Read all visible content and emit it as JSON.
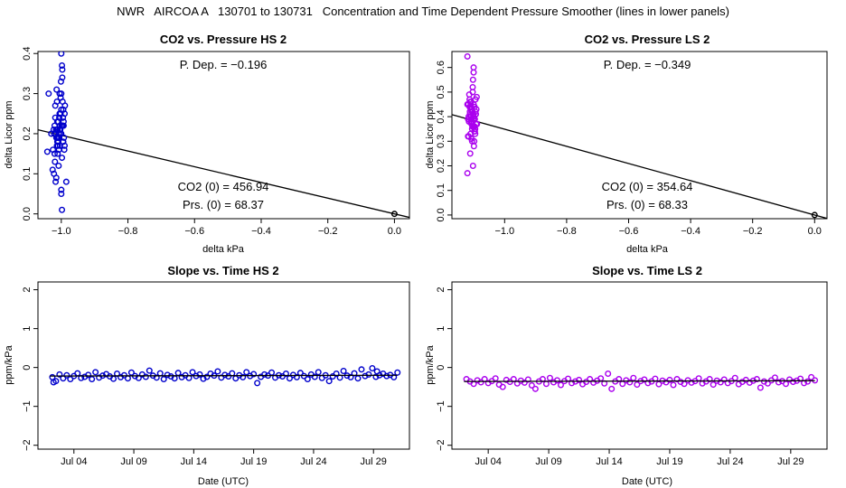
{
  "title": "NWR   AIRCOA A   130701 to 130731   Concentration and Time Dependent Pressure Smoother (lines in lower panels)",
  "colors": {
    "hs": "#0000cc",
    "ls": "#aa00ee",
    "line": "#000000"
  },
  "chart_data": [
    {
      "id": "p1",
      "type": "scatter",
      "title": "CO2 vs. Pressure HS 2",
      "xlabel": "delta kPa",
      "ylabel": "delta Licor ppm",
      "xlim": [
        -1.07,
        0.045
      ],
      "ylim": [
        -0.012,
        0.405
      ],
      "xticks": [
        -1.0,
        -0.8,
        -0.6,
        -0.4,
        -0.2,
        0.0
      ],
      "xtick_labels": [
        "−1.0",
        "−0.8",
        "−0.6",
        "−0.4",
        "−0.2",
        "0.0"
      ],
      "yticks": [
        0.0,
        0.1,
        0.2,
        0.3,
        0.4
      ],
      "ytick_labels": [
        "0.0",
        "0.1",
        "0.2",
        "0.3",
        "0.4"
      ],
      "annotations": {
        "pdep": "P. Dep. =  −0.196",
        "co2": "CO2 (0) =  456.94",
        "prs": "Prs. (0) =  68.37"
      },
      "fit_line": {
        "slope": -0.196,
        "intercept": 0.0
      },
      "points": {
        "x": [
          -1.0,
          -1.015,
          -1.005,
          -0.995,
          -1.02,
          -1.01,
          -0.99,
          -1.025,
          -1.0,
          -1.012,
          -0.998,
          -1.008,
          -1.018,
          -0.992,
          -1.003,
          -1.022,
          -1.006,
          -0.996,
          -1.011,
          -1.001,
          -1.016,
          -0.994,
          -1.009,
          -1.004,
          -1.019,
          -0.997,
          -1.013,
          -1.002,
          -1.007,
          -0.993,
          -1.014,
          -1.0,
          -1.021,
          -0.991,
          -1.005,
          -1.017,
          -0.999,
          -1.01,
          -1.026,
          -0.989,
          -1.003,
          -1.012,
          -0.995,
          -1.008,
          -1.015,
          -1.0,
          -1.004,
          -0.997,
          -1.011,
          -1.02,
          -0.993,
          -1.006,
          -1.013,
          -1.0,
          -0.998,
          -1.009,
          -1.016,
          -1.002,
          -0.994,
          -1.023,
          -1.0,
          -1.007,
          -0.996,
          -1.012,
          -1.005,
          -1.018,
          -1.001,
          -0.99,
          -1.014,
          -1.003,
          -1.042,
          -1.038,
          -0.998,
          -1.03,
          -0.985
        ],
        "y": [
          0.2,
          0.19,
          0.21,
          0.18,
          0.22,
          0.17,
          0.25,
          0.16,
          0.3,
          0.23,
          0.14,
          0.12,
          0.27,
          0.19,
          0.2,
          0.1,
          0.24,
          0.28,
          0.15,
          0.33,
          0.21,
          0.26,
          0.18,
          0.22,
          0.13,
          0.36,
          0.17,
          0.29,
          0.19,
          0.23,
          0.31,
          0.4,
          0.2,
          0.16,
          0.25,
          0.08,
          0.22,
          0.19,
          0.11,
          0.27,
          0.21,
          0.18,
          0.24,
          0.2,
          0.09,
          0.26,
          0.17,
          0.34,
          0.21,
          0.15,
          0.22,
          0.19,
          0.28,
          0.06,
          0.01,
          0.23,
          0.2,
          0.25,
          0.18,
          0.21,
          0.05,
          0.16,
          0.22,
          0.19,
          0.3,
          0.24,
          0.2,
          0.17,
          0.21,
          0.2,
          0.155,
          0.3,
          0.37,
          0.2,
          0.08
        ]
      },
      "origin_point": {
        "x": 0.0,
        "y": 0.0
      }
    },
    {
      "id": "p2",
      "type": "scatter",
      "title": "CO2 vs. Pressure LS 2",
      "xlabel": "delta kPa",
      "ylabel": "delta Licor ppm",
      "xlim": [
        -1.17,
        0.04
      ],
      "ylim": [
        -0.015,
        0.665
      ],
      "xticks": [
        -1.0,
        -0.8,
        -0.6,
        -0.4,
        -0.2,
        0.0
      ],
      "xtick_labels": [
        "−1.0",
        "−0.8",
        "−0.6",
        "−0.4",
        "−0.2",
        "0.0"
      ],
      "yticks": [
        0.0,
        0.1,
        0.2,
        0.3,
        0.4,
        0.5,
        0.6
      ],
      "ytick_labels": [
        "0.0",
        "0.1",
        "0.2",
        "0.3",
        "0.4",
        "0.5",
        "0.6"
      ],
      "annotations": {
        "pdep": "P. Dep. =  −0.349",
        "co2": "CO2 (0) =  354.64",
        "prs": "Prs. (0) =  68.33"
      },
      "fit_line": {
        "slope": -0.349,
        "intercept": 0.0
      },
      "points": {
        "x": [
          -1.1,
          -1.115,
          -1.105,
          -1.095,
          -1.12,
          -1.11,
          -1.09,
          -1.1,
          -1.112,
          -1.098,
          -1.108,
          -1.118,
          -1.092,
          -1.103,
          -1.106,
          -1.096,
          -1.111,
          -1.101,
          -1.116,
          -1.094,
          -1.109,
          -1.104,
          -1.097,
          -1.113,
          -1.102,
          -1.107,
          -1.093,
          -1.114,
          -1.1,
          -1.091,
          -1.105,
          -1.117,
          -1.099,
          -1.11,
          -1.089,
          -1.103,
          -1.112,
          -1.095,
          -1.108,
          -1.115,
          -1.1,
          -1.104,
          -1.097,
          -1.111,
          -1.093,
          -1.106,
          -1.113,
          -1.1,
          -1.098,
          -1.109,
          -1.116,
          -1.102,
          -1.094,
          -1.107,
          -1.1,
          -1.118,
          -1.096,
          -1.105,
          -1.112,
          -1.101,
          -1.12,
          -1.108
        ],
        "y": [
          0.4,
          0.38,
          0.42,
          0.35,
          0.45,
          0.33,
          0.48,
          0.36,
          0.41,
          0.3,
          0.44,
          0.39,
          0.37,
          0.5,
          0.43,
          0.34,
          0.46,
          0.4,
          0.32,
          0.47,
          0.38,
          0.42,
          0.36,
          0.44,
          0.55,
          0.31,
          0.41,
          0.49,
          0.39,
          0.43,
          0.35,
          0.45,
          0.28,
          0.4,
          0.37,
          0.52,
          0.42,
          0.33,
          0.46,
          0.38,
          0.6,
          0.36,
          0.44,
          0.25,
          0.41,
          0.39,
          0.47,
          0.58,
          0.34,
          0.43,
          0.4,
          0.2,
          0.42,
          0.37,
          0.45,
          0.32,
          0.39,
          0.3,
          0.44,
          0.41,
          0.17,
          0.4
        ],
        "extra": [
          {
            "x": -1.12,
            "y": 0.645
          }
        ]
      },
      "origin_point": {
        "x": 0.0,
        "y": 0.0
      }
    },
    {
      "id": "p3",
      "type": "scatter",
      "title": "Slope vs. Time HS 2",
      "xlabel": "Date (UTC)",
      "ylabel": "ppm/kPa",
      "xlim": [
        0.0,
        31.0
      ],
      "ylim": [
        -2.1,
        2.2
      ],
      "xticks": [
        3.0,
        8.0,
        13.0,
        18.0,
        23.0,
        28.0
      ],
      "xtick_labels": [
        "Jul 04",
        "Jul 09",
        "Jul 14",
        "Jul 19",
        "Jul 24",
        "Jul 29"
      ],
      "yticks": [
        -2,
        -1,
        0,
        1,
        2
      ],
      "ytick_labels": [
        "−2",
        "−1",
        "0",
        "1",
        "2"
      ],
      "points": {
        "x": [
          1.2,
          1.5,
          1.8,
          2.1,
          2.4,
          2.7,
          3.0,
          3.3,
          3.6,
          3.9,
          4.2,
          4.5,
          4.8,
          5.1,
          5.4,
          5.7,
          6.0,
          6.3,
          6.6,
          6.9,
          7.2,
          7.5,
          7.8,
          8.1,
          8.4,
          8.7,
          9.0,
          9.3,
          9.6,
          9.9,
          10.2,
          10.5,
          10.8,
          11.1,
          11.4,
          11.7,
          12.0,
          12.3,
          12.6,
          12.9,
          13.2,
          13.5,
          13.8,
          14.1,
          14.4,
          14.7,
          15.0,
          15.3,
          15.6,
          15.9,
          16.2,
          16.5,
          16.8,
          17.1,
          17.4,
          17.7,
          18.0,
          18.3,
          18.6,
          18.9,
          19.2,
          19.5,
          19.8,
          20.1,
          20.4,
          20.7,
          21.0,
          21.3,
          21.6,
          21.9,
          22.2,
          22.5,
          22.8,
          23.1,
          23.4,
          23.7,
          24.0,
          24.3,
          24.6,
          24.9,
          25.2,
          25.5,
          25.8,
          26.1,
          26.4,
          26.7,
          27.0,
          27.3,
          27.6,
          27.9,
          28.2,
          28.5,
          28.8,
          29.1,
          29.4,
          29.7,
          30.0
        ],
        "y": [
          -0.25,
          -0.35,
          -0.18,
          -0.28,
          -0.2,
          -0.3,
          -0.22,
          -0.15,
          -0.27,
          -0.24,
          -0.19,
          -0.3,
          -0.12,
          -0.26,
          -0.21,
          -0.17,
          -0.23,
          -0.29,
          -0.16,
          -0.25,
          -0.2,
          -0.28,
          -0.13,
          -0.22,
          -0.27,
          -0.18,
          -0.24,
          -0.08,
          -0.21,
          -0.26,
          -0.15,
          -0.3,
          -0.19,
          -0.23,
          -0.28,
          -0.14,
          -0.25,
          -0.2,
          -0.27,
          -0.12,
          -0.22,
          -0.18,
          -0.29,
          -0.24,
          -0.16,
          -0.21,
          -0.1,
          -0.26,
          -0.19,
          -0.23,
          -0.15,
          -0.28,
          -0.2,
          -0.25,
          -0.12,
          -0.22,
          -0.17,
          -0.4,
          -0.24,
          -0.18,
          -0.21,
          -0.13,
          -0.26,
          -0.2,
          -0.23,
          -0.16,
          -0.28,
          -0.19,
          -0.25,
          -0.14,
          -0.22,
          -0.3,
          -0.18,
          -0.24,
          -0.12,
          -0.27,
          -0.2,
          -0.35,
          -0.23,
          -0.16,
          -0.26,
          -0.09,
          -0.21,
          -0.25,
          -0.15,
          -0.28,
          -0.05,
          -0.22,
          -0.18,
          -0.02,
          -0.24,
          -0.2,
          -0.16,
          -0.22,
          -0.19,
          -0.25,
          -0.13
        ],
        "extra": [
          {
            "x": 1.3,
            "y": -0.38
          },
          {
            "x": 28.3,
            "y": -0.1
          }
        ]
      },
      "smoother": {
        "x": [
          1.0,
          30.0
        ],
        "y": [
          -0.22,
          -0.2
        ]
      }
    },
    {
      "id": "p4",
      "type": "scatter",
      "title": "Slope vs. Time LS 2",
      "xlabel": "Date (UTC)",
      "ylabel": "ppm/kPa",
      "xlim": [
        0.0,
        31.0
      ],
      "ylim": [
        -2.1,
        2.2
      ],
      "xticks": [
        3.0,
        8.0,
        13.0,
        18.0,
        23.0,
        28.0
      ],
      "xtick_labels": [
        "Jul 04",
        "Jul 09",
        "Jul 14",
        "Jul 19",
        "Jul 24",
        "Jul 29"
      ],
      "yticks": [
        -2,
        -1,
        0,
        1,
        2
      ],
      "ytick_labels": [
        "−2",
        "−1",
        "0",
        "1",
        "2"
      ],
      "points": {
        "x": [
          1.2,
          1.5,
          1.8,
          2.1,
          2.4,
          2.7,
          3.0,
          3.3,
          3.6,
          3.9,
          4.2,
          4.5,
          4.8,
          5.1,
          5.4,
          5.7,
          6.0,
          6.3,
          6.6,
          6.9,
          7.2,
          7.5,
          7.8,
          8.1,
          8.4,
          8.7,
          9.0,
          9.3,
          9.6,
          9.9,
          10.2,
          10.5,
          10.8,
          11.1,
          11.4,
          11.7,
          12.0,
          12.3,
          12.6,
          12.9,
          13.2,
          13.5,
          13.8,
          14.1,
          14.4,
          14.7,
          15.0,
          15.3,
          15.6,
          15.9,
          16.2,
          16.5,
          16.8,
          17.1,
          17.4,
          17.7,
          18.0,
          18.3,
          18.6,
          18.9,
          19.2,
          19.5,
          19.8,
          20.1,
          20.4,
          20.7,
          21.0,
          21.3,
          21.6,
          21.9,
          22.2,
          22.5,
          22.8,
          23.1,
          23.4,
          23.7,
          24.0,
          24.3,
          24.6,
          24.9,
          25.2,
          25.5,
          25.8,
          26.1,
          26.4,
          26.7,
          27.0,
          27.3,
          27.6,
          27.9,
          28.2,
          28.5,
          28.8,
          29.1,
          29.4,
          29.7,
          30.0
        ],
        "y": [
          -0.3,
          -0.36,
          -0.42,
          -0.33,
          -0.38,
          -0.3,
          -0.4,
          -0.35,
          -0.28,
          -0.44,
          -0.5,
          -0.32,
          -0.37,
          -0.3,
          -0.41,
          -0.34,
          -0.39,
          -0.31,
          -0.46,
          -0.55,
          -0.36,
          -0.3,
          -0.42,
          -0.27,
          -0.38,
          -0.33,
          -0.45,
          -0.35,
          -0.29,
          -0.4,
          -0.36,
          -0.32,
          -0.43,
          -0.37,
          -0.3,
          -0.39,
          -0.34,
          -0.28,
          -0.41,
          -0.16,
          -0.55,
          -0.36,
          -0.3,
          -0.42,
          -0.33,
          -0.38,
          -0.27,
          -0.44,
          -0.35,
          -0.31,
          -0.4,
          -0.36,
          -0.29,
          -0.43,
          -0.34,
          -0.38,
          -0.32,
          -0.45,
          -0.3,
          -0.37,
          -0.42,
          -0.33,
          -0.39,
          -0.35,
          -0.28,
          -0.41,
          -0.36,
          -0.3,
          -0.44,
          -0.34,
          -0.38,
          -0.31,
          -0.4,
          -0.35,
          -0.27,
          -0.43,
          -0.37,
          -0.32,
          -0.39,
          -0.34,
          -0.3,
          -0.52,
          -0.36,
          -0.41,
          -0.33,
          -0.26,
          -0.38,
          -0.35,
          -0.42,
          -0.31,
          -0.37,
          -0.34,
          -0.29,
          -0.4,
          -0.36,
          -0.25,
          -0.33
        ]
      },
      "smoother": {
        "x": [
          1.0,
          30.0
        ],
        "y": [
          -0.36,
          -0.34
        ]
      }
    }
  ]
}
